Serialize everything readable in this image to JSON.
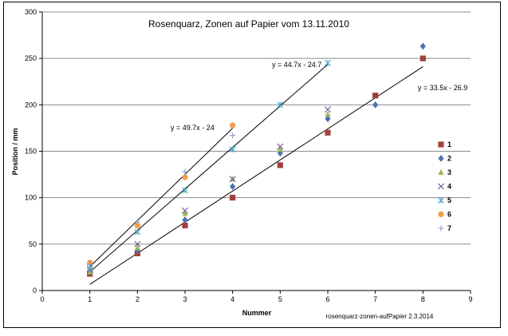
{
  "chart_data": {
    "type": "scatter",
    "title": "Rosenquarz, Zonen auf Papier   vom 13.11.2010",
    "xlabel": "Nummer",
    "ylabel": "Position / mm",
    "xlim": [
      0,
      9
    ],
    "ylim": [
      0,
      300
    ],
    "x_ticks": [
      0,
      1,
      2,
      3,
      4,
      5,
      6,
      7,
      8,
      9
    ],
    "y_ticks": [
      0,
      50,
      100,
      150,
      200,
      250,
      300
    ],
    "grid": "horizontal",
    "legend_position": "right",
    "footer_note": "rosenquarz-zonen-aufPapier 2.3.2014",
    "series": [
      {
        "name": "1",
        "marker": "square",
        "color": "#A0413C",
        "x": [
          1,
          2,
          3,
          4,
          5,
          6,
          7,
          8
        ],
        "y": [
          18,
          40,
          70,
          100,
          135,
          170,
          210,
          250
        ]
      },
      {
        "name": "2",
        "marker": "diamond",
        "color": "#4A74B0",
        "x": [
          1,
          2,
          3,
          4,
          5,
          6,
          7,
          8
        ],
        "y": [
          20,
          43,
          76,
          112,
          148,
          185,
          200,
          263
        ]
      },
      {
        "name": "3",
        "marker": "triangle",
        "color": "#98B954",
        "x": [
          1,
          2,
          3,
          4,
          5,
          6
        ],
        "y": [
          20,
          46,
          83,
          120,
          152,
          190
        ]
      },
      {
        "name": "4",
        "marker": "x",
        "color": "#7D5F9F",
        "x": [
          1,
          2,
          3,
          4,
          5,
          6
        ],
        "y": [
          22,
          50,
          86,
          120,
          155,
          195
        ]
      },
      {
        "name": "5",
        "marker": "star",
        "color": "#4BACC6",
        "x": [
          1,
          2,
          3,
          4,
          5,
          6
        ],
        "y": [
          24,
          63,
          108,
          152,
          200,
          245
        ]
      },
      {
        "name": "6",
        "marker": "circle",
        "color": "#F39C4A",
        "x": [
          1,
          2,
          3,
          4
        ],
        "y": [
          30,
          70,
          122,
          178
        ]
      },
      {
        "name": "7",
        "marker": "plus",
        "color": "#8A9CC4",
        "x": [
          1,
          2,
          3,
          4
        ],
        "y": [
          28,
          74,
          128,
          167
        ]
      }
    ],
    "trendlines": [
      {
        "label": "y = 49.7x - 24",
        "slope": 49.7,
        "intercept": -24,
        "x_range": [
          1,
          4
        ]
      },
      {
        "label": "y = 44.7x - 24.7",
        "slope": 44.7,
        "intercept": -24.7,
        "x_range": [
          1,
          6
        ]
      },
      {
        "label": "y = 33.5x - 26.9",
        "slope": 33.5,
        "intercept": -26.9,
        "x_range": [
          1,
          8
        ]
      }
    ]
  }
}
